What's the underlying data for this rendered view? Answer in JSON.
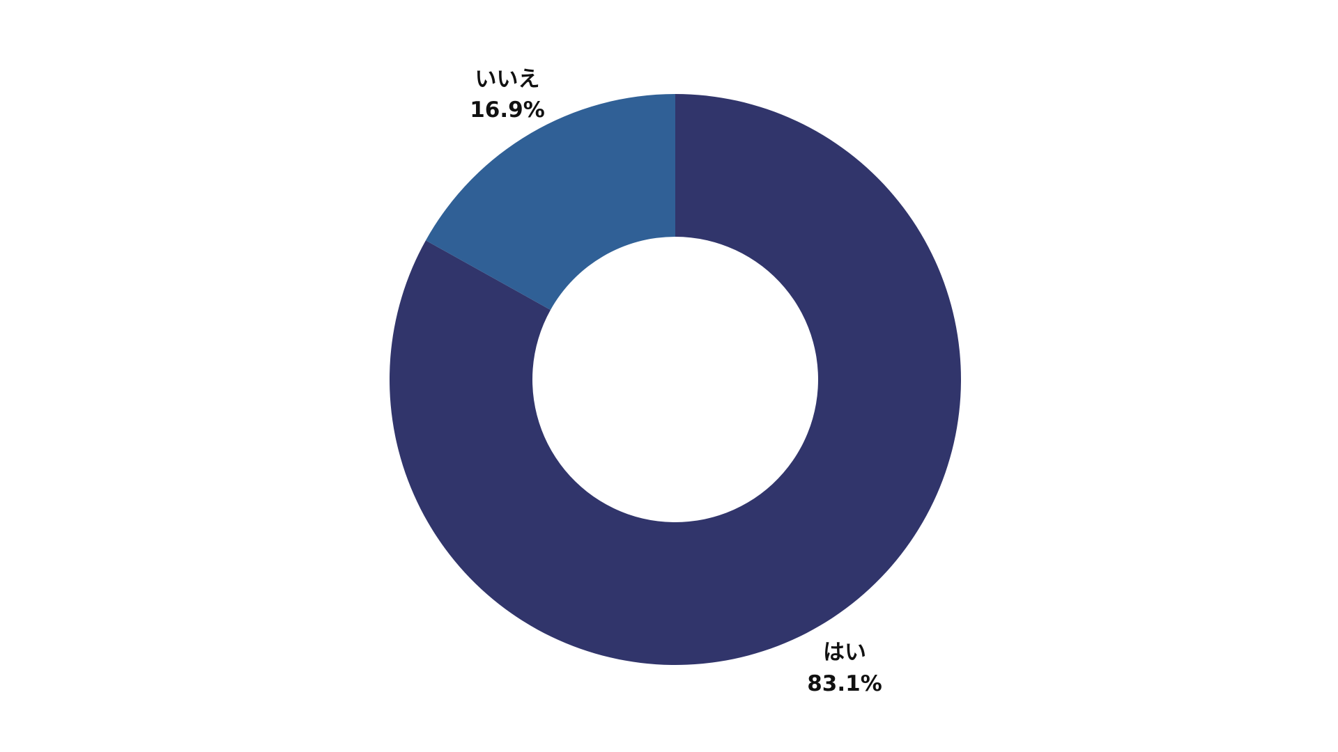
{
  "chart_data": {
    "type": "pie",
    "variant": "donut",
    "categories": [
      "はい",
      "いいえ"
    ],
    "values": [
      83.1,
      16.9
    ],
    "value_labels": [
      "83.1%",
      "16.9%"
    ],
    "colors": [
      "#31356b",
      "#306096"
    ],
    "title": "",
    "legend": "none"
  }
}
